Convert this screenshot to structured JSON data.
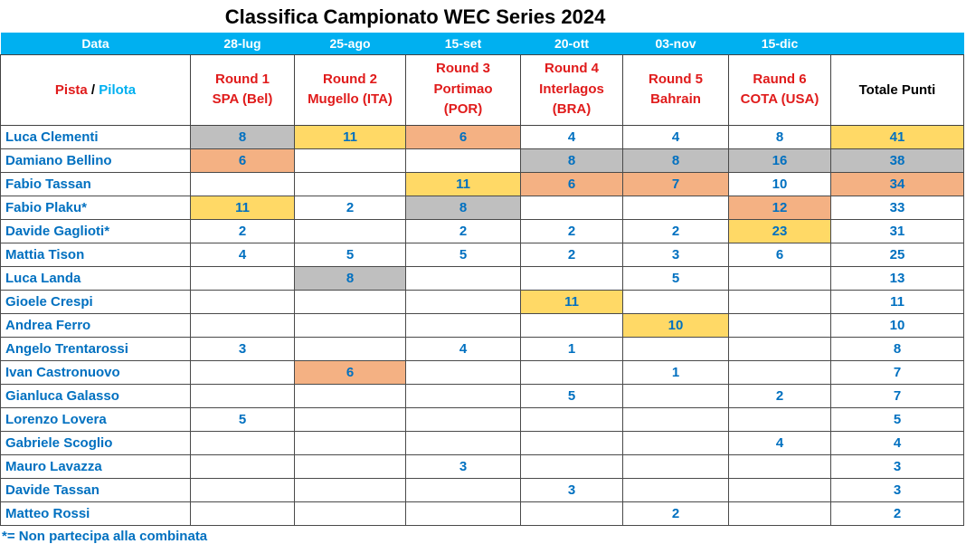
{
  "title": "Classifica Campionato WEC Series 2024",
  "footnote": "*= Non partecipa alla combinata",
  "colors": {
    "header_bar_blue": "#00B0F0",
    "text_blue": "#0070C0",
    "round_red": "#E01B1B",
    "pilota_cyan": "#00B0F0",
    "highlights": {
      "yellow": "#FFD966",
      "gray": "#BFBFBF",
      "orange": "#F4B183"
    }
  },
  "date_row": {
    "label": "Data",
    "dates": [
      "28-lug",
      "25-ago",
      "15-set",
      "20-ott",
      "03-nov",
      "15-dic"
    ]
  },
  "header": {
    "pista": "Pista",
    "separator": "/",
    "pilota": "Pilota",
    "rounds": [
      [
        "Round 1",
        "SPA (Bel)"
      ],
      [
        "Round 2",
        "Mugello (ITA)"
      ],
      [
        "Round 3",
        "Portimao",
        "(POR)"
      ],
      [
        "Round 4",
        "Interlagos",
        "(BRA)"
      ],
      [
        "Round 5",
        "Bahrain"
      ],
      [
        "Raund 6",
        "COTA (USA)"
      ]
    ],
    "total_label": "Totale Punti"
  },
  "rows": [
    {
      "name": "Luca Clementi",
      "points": [
        "8",
        "11",
        "6",
        "4",
        "4",
        "8"
      ],
      "highlights": [
        "gray",
        "yellow",
        "orange",
        "",
        "",
        ""
      ],
      "total": "41",
      "total_highlight": "yellow"
    },
    {
      "name": "Damiano Bellino",
      "points": [
        "6",
        "",
        "",
        "8",
        "8",
        "16"
      ],
      "highlights": [
        "orange",
        "",
        "",
        "gray",
        "gray",
        "gray"
      ],
      "total": "38",
      "total_highlight": "gray"
    },
    {
      "name": "Fabio Tassan",
      "points": [
        "",
        "",
        "11",
        "6",
        "7",
        "10"
      ],
      "highlights": [
        "",
        "",
        "yellow",
        "orange",
        "orange",
        ""
      ],
      "total": "34",
      "total_highlight": "orange"
    },
    {
      "name": "Fabio Plaku*",
      "points": [
        "11",
        "2",
        "8",
        "",
        "",
        "12"
      ],
      "highlights": [
        "yellow",
        "",
        "gray",
        "",
        "",
        "orange"
      ],
      "total": "33",
      "total_highlight": ""
    },
    {
      "name": "Davide Gaglioti*",
      "points": [
        "2",
        "",
        "2",
        "2",
        "2",
        "23"
      ],
      "highlights": [
        "",
        "",
        "",
        "",
        "",
        "yellow"
      ],
      "total": "31",
      "total_highlight": ""
    },
    {
      "name": "Mattia Tison",
      "points": [
        "4",
        "5",
        "5",
        "2",
        "3",
        "6"
      ],
      "highlights": [
        "",
        "",
        "",
        "",
        "",
        ""
      ],
      "total": "25",
      "total_highlight": ""
    },
    {
      "name": "Luca Landa",
      "points": [
        "",
        "8",
        "",
        "",
        "5",
        ""
      ],
      "highlights": [
        "",
        "gray",
        "",
        "",
        "",
        ""
      ],
      "total": "13",
      "total_highlight": ""
    },
    {
      "name": "Gioele Crespi",
      "points": [
        "",
        "",
        "",
        "11",
        "",
        ""
      ],
      "highlights": [
        "",
        "",
        "",
        "yellow",
        "",
        ""
      ],
      "total": "11",
      "total_highlight": ""
    },
    {
      "name": "Andrea Ferro",
      "points": [
        "",
        "",
        "",
        "",
        "10",
        ""
      ],
      "highlights": [
        "",
        "",
        "",
        "",
        "yellow",
        ""
      ],
      "total": "10",
      "total_highlight": ""
    },
    {
      "name": "Angelo Trentarossi",
      "points": [
        "3",
        "",
        "4",
        "1",
        "",
        ""
      ],
      "highlights": [
        "",
        "",
        "",
        "",
        "",
        ""
      ],
      "total": "8",
      "total_highlight": ""
    },
    {
      "name": "Ivan Castronuovo",
      "points": [
        "",
        "6",
        "",
        "",
        "1",
        ""
      ],
      "highlights": [
        "",
        "orange",
        "",
        "",
        "",
        ""
      ],
      "total": "7",
      "total_highlight": ""
    },
    {
      "name": "Gianluca Galasso",
      "points": [
        "",
        "",
        "",
        "5",
        "",
        "2"
      ],
      "highlights": [
        "",
        "",
        "",
        "",
        "",
        ""
      ],
      "total": "7",
      "total_highlight": ""
    },
    {
      "name": "Lorenzo Lovera",
      "points": [
        "5",
        "",
        "",
        "",
        "",
        ""
      ],
      "highlights": [
        "",
        "",
        "",
        "",
        "",
        ""
      ],
      "total": "5",
      "total_highlight": ""
    },
    {
      "name": "Gabriele Scoglio",
      "points": [
        "",
        "",
        "",
        "",
        "",
        "4"
      ],
      "highlights": [
        "",
        "",
        "",
        "",
        "",
        ""
      ],
      "total": "4",
      "total_highlight": ""
    },
    {
      "name": "Mauro Lavazza",
      "points": [
        "",
        "",
        "3",
        "",
        "",
        ""
      ],
      "highlights": [
        "",
        "",
        "",
        "",
        "",
        ""
      ],
      "total": "3",
      "total_highlight": ""
    },
    {
      "name": "Davide Tassan",
      "points": [
        "",
        "",
        "",
        "3",
        "",
        ""
      ],
      "highlights": [
        "",
        "",
        "",
        "",
        "",
        ""
      ],
      "total": "3",
      "total_highlight": ""
    },
    {
      "name": "Matteo Rossi",
      "points": [
        "",
        "",
        "",
        "",
        "2",
        ""
      ],
      "highlights": [
        "",
        "",
        "",
        "",
        "",
        ""
      ],
      "total": "2",
      "total_highlight": ""
    }
  ]
}
